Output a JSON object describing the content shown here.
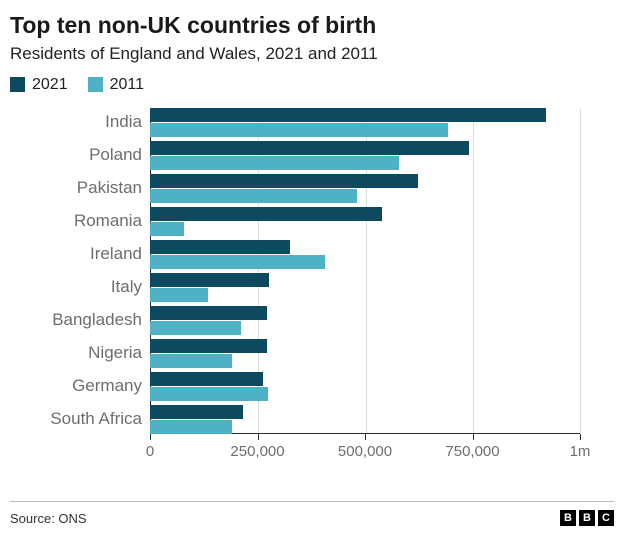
{
  "header": {
    "title": "Top ten non-UK countries of birth",
    "subtitle": "Residents of England and Wales, 2021 and 2011"
  },
  "legend": [
    {
      "label": "2021",
      "color": "#0e4a5f"
    },
    {
      "label": "2011",
      "color": "#4fb2c4"
    }
  ],
  "chart_data": {
    "type": "bar",
    "orientation": "horizontal",
    "title": "Top ten non-UK countries of birth",
    "subtitle": "Residents of England and Wales, 2021 and 2011",
    "categories": [
      "India",
      "Poland",
      "Pakistan",
      "Romania",
      "Ireland",
      "Italy",
      "Bangladesh",
      "Nigeria",
      "Germany",
      "South Africa"
    ],
    "series": [
      {
        "name": "2021",
        "color": "#0e4a5f",
        "values": [
          920000,
          743000,
          624000,
          539000,
          325000,
          277000,
          273000,
          271000,
          263000,
          217000
        ]
      },
      {
        "name": "2011",
        "color": "#4fb2c4",
        "values": [
          694000,
          579000,
          482000,
          80000,
          407000,
          135000,
          212000,
          191000,
          274000,
          191000
        ]
      }
    ],
    "xlim": [
      0,
      1000000
    ],
    "x_ticks": [
      {
        "value": 0,
        "label": "0"
      },
      {
        "value": 250000,
        "label": "250,000"
      },
      {
        "value": 500000,
        "label": "500,000"
      },
      {
        "value": 750000,
        "label": "750,000"
      },
      {
        "value": 1000000,
        "label": "1m"
      }
    ],
    "grid": true,
    "legend_position": "top"
  },
  "footer": {
    "source": "Source: ONS",
    "logo_letters": [
      "B",
      "B",
      "C"
    ]
  }
}
